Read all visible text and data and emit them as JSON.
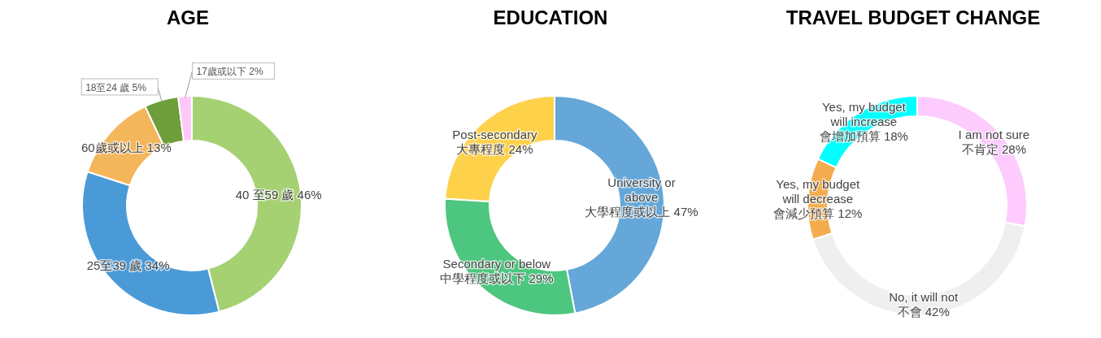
{
  "chart_data": [
    {
      "type": "donut",
      "title": "AGE",
      "categories": [
        "40 至59 歲",
        "25至39 歲",
        "60歲或以上",
        "18至24 歲",
        "17歲或以下"
      ],
      "values": [
        46,
        34,
        13,
        5,
        2
      ],
      "value_labels": [
        "46%",
        "34%",
        "13%",
        "5%",
        "2%"
      ],
      "colors": [
        "#a5d173",
        "#4a9ad8",
        "#f4b65a",
        "#6e9e3c",
        "#ffc8fa"
      ]
    },
    {
      "type": "donut",
      "title": "EDUCATION",
      "categories": [
        "University or above 大學程度或以上",
        "Secondary or below 中學程度或以下",
        "Post-secondary 大專程度"
      ],
      "values": [
        47,
        29,
        24
      ],
      "value_labels": [
        "47%",
        "29%",
        "24%"
      ],
      "colors": [
        "#64a7d8",
        "#4dc67f",
        "#fed14b"
      ]
    },
    {
      "type": "donut",
      "title": "TRAVEL BUDGET CHANGE",
      "categories": [
        "I am not sure 不肯定",
        "No, it will not 不會",
        "Yes, my budget will decrease 會減少預算",
        "Yes, my budget will increase 會增加預算"
      ],
      "values": [
        28,
        42,
        12,
        18
      ],
      "value_labels": [
        "28%",
        "42%",
        "12%",
        "18%"
      ],
      "colors": [
        "#fdcbfd",
        "#efefef",
        "#f3ad4f",
        "#00ffff"
      ]
    }
  ]
}
